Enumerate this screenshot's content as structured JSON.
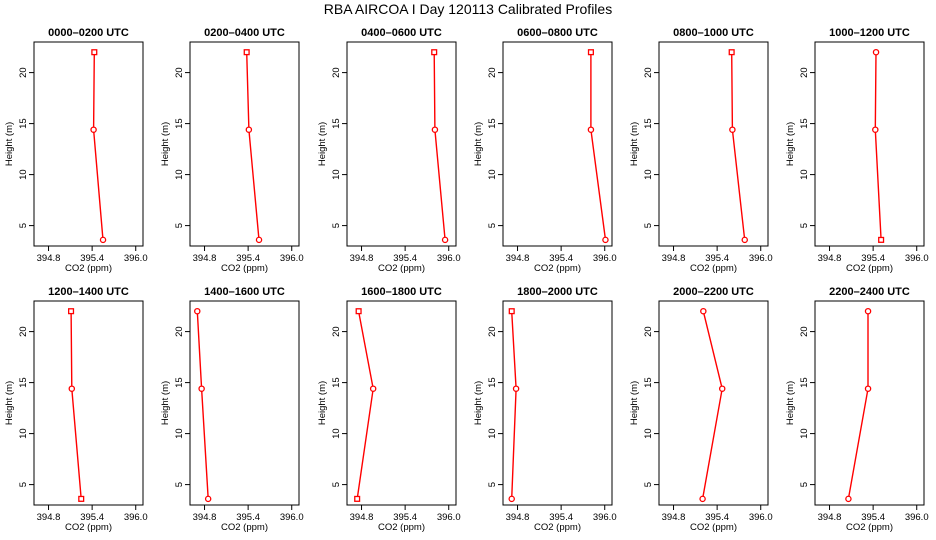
{
  "title": "RBA AIRCOA I  Day 120113  Calibrated Profiles",
  "colors": {
    "series": "#ff0000",
    "axis": "#000000",
    "background": "#ffffff"
  },
  "chart_data": [
    {
      "type": "line",
      "title": "0000–0200 UTC",
      "xlabel": "CO2 (ppm)",
      "ylabel": "Height (m)",
      "xlim": [
        394.6,
        396.1
      ],
      "ylim": [
        3,
        23
      ],
      "xticks": [
        "394.8",
        "395.4",
        "396.0"
      ],
      "yticks": [
        "5",
        "10",
        "15",
        "20"
      ],
      "x": [
        395.43,
        395.42,
        395.55
      ],
      "y": [
        22,
        14.4,
        3.6
      ],
      "markers": [
        "square",
        "circle",
        "circle"
      ]
    },
    {
      "type": "line",
      "title": "0200–0400 UTC",
      "xlabel": "CO2 (ppm)",
      "ylabel": "Height (m)",
      "xlim": [
        394.6,
        396.1
      ],
      "ylim": [
        3,
        23
      ],
      "xticks": [
        "394.8",
        "395.4",
        "396.0"
      ],
      "yticks": [
        "5",
        "10",
        "15",
        "20"
      ],
      "x": [
        395.38,
        395.41,
        395.55
      ],
      "y": [
        22,
        14.4,
        3.6
      ],
      "markers": [
        "square",
        "circle",
        "circle"
      ]
    },
    {
      "type": "line",
      "title": "0400–0600 UTC",
      "xlabel": "CO2 (ppm)",
      "ylabel": "Height (m)",
      "xlim": [
        394.6,
        396.1
      ],
      "ylim": [
        3,
        23
      ],
      "xticks": [
        "394.8",
        "395.4",
        "396.0"
      ],
      "yticks": [
        "5",
        "10",
        "15",
        "20"
      ],
      "x": [
        395.8,
        395.81,
        395.95
      ],
      "y": [
        22,
        14.4,
        3.6
      ],
      "markers": [
        "square",
        "circle",
        "circle"
      ]
    },
    {
      "type": "line",
      "title": "0600–0800 UTC",
      "xlabel": "CO2 (ppm)",
      "ylabel": "Height (m)",
      "xlim": [
        394.6,
        396.1
      ],
      "ylim": [
        3,
        23
      ],
      "xticks": [
        "394.8",
        "395.4",
        "396.0"
      ],
      "yticks": [
        "5",
        "10",
        "15",
        "20"
      ],
      "x": [
        395.81,
        395.81,
        396.01
      ],
      "y": [
        22,
        14.4,
        3.6
      ],
      "markers": [
        "square",
        "circle",
        "circle"
      ]
    },
    {
      "type": "line",
      "title": "0800–1000 UTC",
      "xlabel": "CO2 (ppm)",
      "ylabel": "Height (m)",
      "xlim": [
        394.6,
        396.1
      ],
      "ylim": [
        3,
        23
      ],
      "xticks": [
        "394.8",
        "395.4",
        "396.0"
      ],
      "yticks": [
        "5",
        "10",
        "15",
        "20"
      ],
      "x": [
        395.6,
        395.61,
        395.78
      ],
      "y": [
        22,
        14.4,
        3.6
      ],
      "markers": [
        "square",
        "circle",
        "circle"
      ]
    },
    {
      "type": "line",
      "title": "1000–1200 UTC",
      "xlabel": "CO2 (ppm)",
      "ylabel": "Height (m)",
      "xlim": [
        394.6,
        396.1
      ],
      "ylim": [
        3,
        23
      ],
      "xticks": [
        "394.8",
        "395.4",
        "396.0"
      ],
      "yticks": [
        "5",
        "10",
        "15",
        "20"
      ],
      "x": [
        395.44,
        395.43,
        395.51
      ],
      "y": [
        22,
        14.4,
        3.6
      ],
      "markers": [
        "circle",
        "circle",
        "square"
      ]
    },
    {
      "type": "line",
      "title": "1200–1400 UTC",
      "xlabel": "CO2 (ppm)",
      "ylabel": "Height (m)",
      "xlim": [
        394.6,
        396.1
      ],
      "ylim": [
        3,
        23
      ],
      "xticks": [
        "394.8",
        "395.4",
        "396.0"
      ],
      "yticks": [
        "5",
        "10",
        "15",
        "20"
      ],
      "x": [
        395.11,
        395.12,
        395.25
      ],
      "y": [
        22,
        14.4,
        3.6
      ],
      "markers": [
        "square",
        "circle",
        "square"
      ]
    },
    {
      "type": "line",
      "title": "1400–1600 UTC",
      "xlabel": "CO2 (ppm)",
      "ylabel": "Height (m)",
      "xlim": [
        394.6,
        396.1
      ],
      "ylim": [
        3,
        23
      ],
      "xticks": [
        "394.8",
        "395.4",
        "396.0"
      ],
      "yticks": [
        "5",
        "10",
        "15",
        "20"
      ],
      "x": [
        394.7,
        394.76,
        394.85
      ],
      "y": [
        22,
        14.4,
        3.6
      ],
      "markers": [
        "circle",
        "circle",
        "circle"
      ]
    },
    {
      "type": "line",
      "title": "1600–1800 UTC",
      "xlabel": "CO2 (ppm)",
      "ylabel": "Height (m)",
      "xlim": [
        394.6,
        396.1
      ],
      "ylim": [
        3,
        23
      ],
      "xticks": [
        "394.8",
        "395.4",
        "396.0"
      ],
      "yticks": [
        "5",
        "10",
        "15",
        "20"
      ],
      "x": [
        394.76,
        394.96,
        394.74
      ],
      "y": [
        22,
        14.4,
        3.6
      ],
      "markers": [
        "square",
        "circle",
        "square"
      ]
    },
    {
      "type": "line",
      "title": "1800–2000 UTC",
      "xlabel": "CO2 (ppm)",
      "ylabel": "Height (m)",
      "xlim": [
        394.6,
        396.1
      ],
      "ylim": [
        3,
        23
      ],
      "xticks": [
        "394.8",
        "395.4",
        "396.0"
      ],
      "yticks": [
        "5",
        "10",
        "15",
        "20"
      ],
      "x": [
        394.72,
        394.78,
        394.72
      ],
      "y": [
        22,
        14.4,
        3.6
      ],
      "markers": [
        "square",
        "circle",
        "circle"
      ]
    },
    {
      "type": "line",
      "title": "2000–2200 UTC",
      "xlabel": "CO2 (ppm)",
      "ylabel": "Height (m)",
      "xlim": [
        394.6,
        396.1
      ],
      "ylim": [
        3,
        23
      ],
      "xticks": [
        "394.8",
        "395.4",
        "396.0"
      ],
      "yticks": [
        "5",
        "10",
        "15",
        "20"
      ],
      "x": [
        395.21,
        395.47,
        395.2
      ],
      "y": [
        22,
        14.4,
        3.6
      ],
      "markers": [
        "circle",
        "circle",
        "circle"
      ]
    },
    {
      "type": "line",
      "title": "2200–2400 UTC",
      "xlabel": "CO2 (ppm)",
      "ylabel": "Height (m)",
      "xlim": [
        394.6,
        396.1
      ],
      "ylim": [
        3,
        23
      ],
      "xticks": [
        "394.8",
        "395.4",
        "396.0"
      ],
      "yticks": [
        "5",
        "10",
        "15",
        "20"
      ],
      "x": [
        395.33,
        395.33,
        395.06
      ],
      "y": [
        22,
        14.4,
        3.6
      ],
      "markers": [
        "circle",
        "circle",
        "circle"
      ]
    }
  ]
}
